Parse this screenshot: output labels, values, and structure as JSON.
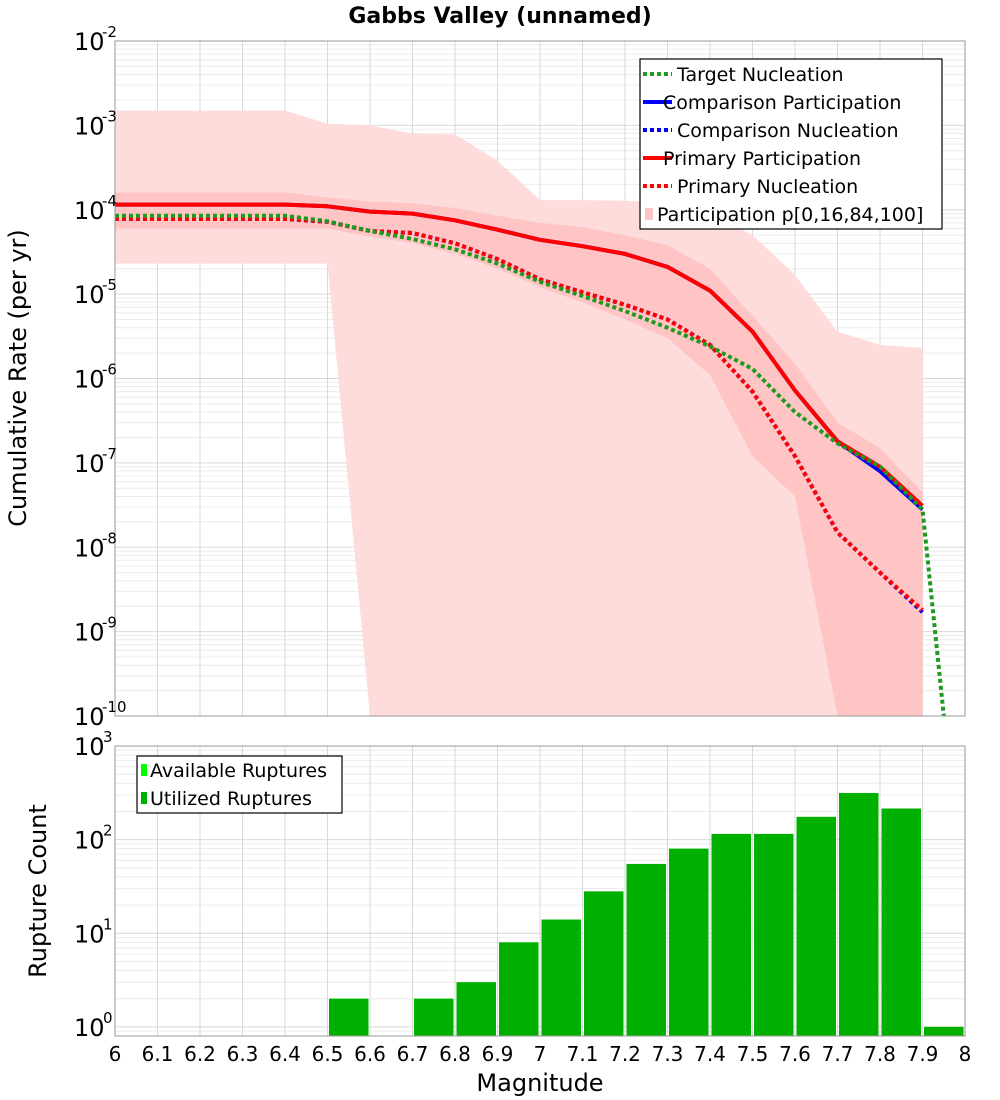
{
  "chart_data": [
    {
      "type": "line",
      "title": "Gabbs Valley (unnamed)",
      "ylabel": "Cumulative Rate (per yr)",
      "xlabel": "",
      "yscale": "log",
      "ylim": [
        1e-10,
        0.01
      ],
      "xlim": [
        6,
        8
      ],
      "y_tick_labels": [
        {
          "base": "10",
          "exp": "-2"
        },
        {
          "base": "10",
          "exp": "-3"
        },
        {
          "base": "10",
          "exp": "-4"
        },
        {
          "base": "10",
          "exp": "-5"
        },
        {
          "base": "10",
          "exp": "-6"
        },
        {
          "base": "10",
          "exp": "-7"
        },
        {
          "base": "10",
          "exp": "-8"
        },
        {
          "base": "10",
          "exp": "-9"
        },
        {
          "base": "10",
          "exp": "-10"
        }
      ],
      "bands": [
        {
          "name": "p0-p100",
          "color": "#ffdcdc",
          "x": [
            6.0,
            6.4,
            6.5,
            6.6,
            6.7,
            6.8,
            6.9,
            7.0,
            7.1,
            7.2,
            7.3,
            7.4,
            7.5,
            7.6,
            7.7,
            7.8,
            7.9
          ],
          "upper": [
            0.0015,
            0.0015,
            0.00105,
            0.001,
            0.0008,
            0.00078,
            0.00038,
            0.00013,
            0.00013,
            0.000128,
            0.00012,
            9e-05,
            5e-05,
            1.7e-05,
            3.6e-06,
            2.5e-06,
            2.3e-06
          ],
          "lower": [
            2.3e-05,
            2.3e-05,
            2.3e-05,
            1e-10,
            1e-10,
            1e-10,
            1e-10,
            1e-10,
            1e-10,
            1e-10,
            1e-10,
            1e-10,
            1e-10,
            1e-10,
            1e-10,
            1e-10,
            1e-10
          ]
        },
        {
          "name": "p16-p84",
          "color": "#ffc4c4",
          "x": [
            6.0,
            6.4,
            6.5,
            6.6,
            6.7,
            6.8,
            6.9,
            7.0,
            7.1,
            7.2,
            7.3,
            7.4,
            7.5,
            7.6,
            7.7,
            7.8,
            7.9
          ],
          "upper": [
            0.00016,
            0.00016,
            0.00014,
            0.000125,
            0.00012,
            0.000105,
            8.5e-05,
            7e-05,
            6.2e-05,
            5e-05,
            3.8e-05,
            2e-05,
            5.5e-06,
            1.5e-06,
            3e-07,
            1.5e-07,
            4.5e-08
          ],
          "lower": [
            6e-05,
            6e-05,
            6e-05,
            4.8e-05,
            4e-05,
            3e-05,
            2e-05,
            1.2e-05,
            8e-06,
            5e-06,
            3e-06,
            1.1e-06,
            1.2e-07,
            4e-08,
            1e-10,
            1e-10,
            1e-10
          ]
        }
      ],
      "series": [
        {
          "name": "Target Nucleation",
          "color": "#1f9a1f",
          "dash": "dotted",
          "x": [
            6.0,
            6.4,
            6.5,
            6.6,
            6.7,
            6.8,
            6.9,
            7.0,
            7.1,
            7.2,
            7.3,
            7.4,
            7.5,
            7.6,
            7.7,
            7.8,
            7.9,
            7.95
          ],
          "values": [
            8.5e-05,
            8.5e-05,
            7.3e-05,
            5.6e-05,
            4.5e-05,
            3.4e-05,
            2.3e-05,
            1.4e-05,
            9.5e-06,
            6.3e-06,
            4e-06,
            2.4e-06,
            1.3e-06,
            4e-07,
            1.7e-07,
            9e-08,
            2.8e-08,
            1e-10
          ]
        },
        {
          "name": "Comparison Participation",
          "color": "#0000ff",
          "dash": "solid",
          "x": [
            6.0,
            6.4,
            6.5,
            6.6,
            6.7,
            6.8,
            6.9,
            7.0,
            7.1,
            7.2,
            7.3,
            7.4,
            7.5,
            7.6,
            7.7,
            7.8,
            7.9
          ],
          "values": [
            0.000115,
            0.000115,
            0.00011,
            9.5e-05,
            9e-05,
            7.5e-05,
            5.8e-05,
            4.4e-05,
            3.7e-05,
            3e-05,
            2.1e-05,
            1.1e-05,
            3.6e-06,
            7.2e-07,
            1.8e-07,
            8e-08,
            2.8e-08
          ]
        },
        {
          "name": "Comparison Nucleation",
          "color": "#0000ff",
          "dash": "dotted",
          "x": [
            6.0,
            6.4,
            6.5,
            6.6,
            6.7,
            6.8,
            6.9,
            7.0,
            7.1,
            7.2,
            7.3,
            7.4,
            7.5,
            7.6,
            7.7,
            7.8,
            7.9
          ],
          "values": [
            7.8e-05,
            7.8e-05,
            7.2e-05,
            5.6e-05,
            5.3e-05,
            4e-05,
            2.6e-05,
            1.5e-05,
            1.05e-05,
            7.5e-06,
            5e-06,
            2.5e-06,
            7e-07,
            1.2e-07,
            1.5e-08,
            5e-09,
            1.7e-09
          ]
        },
        {
          "name": "Primary Participation",
          "color": "#ff0000",
          "dash": "solid",
          "x": [
            6.0,
            6.4,
            6.5,
            6.6,
            6.7,
            6.8,
            6.9,
            7.0,
            7.1,
            7.2,
            7.3,
            7.4,
            7.5,
            7.6,
            7.7,
            7.8,
            7.9
          ],
          "values": [
            0.000115,
            0.000115,
            0.00011,
            9.5e-05,
            9e-05,
            7.5e-05,
            5.8e-05,
            4.4e-05,
            3.7e-05,
            3e-05,
            2.1e-05,
            1.1e-05,
            3.6e-06,
            7.2e-07,
            1.8e-07,
            9e-08,
            3.1e-08
          ]
        },
        {
          "name": "Primary Nucleation",
          "color": "#ff0000",
          "dash": "dotted",
          "x": [
            6.0,
            6.4,
            6.5,
            6.6,
            6.7,
            6.8,
            6.9,
            7.0,
            7.1,
            7.2,
            7.3,
            7.4,
            7.5,
            7.6,
            7.7,
            7.8,
            7.9
          ],
          "values": [
            7.8e-05,
            7.8e-05,
            7.2e-05,
            5.6e-05,
            5.3e-05,
            4e-05,
            2.6e-05,
            1.5e-05,
            1.05e-05,
            7.5e-06,
            5e-06,
            2.5e-06,
            7e-07,
            1.2e-07,
            1.5e-08,
            5e-09,
            1.8e-09
          ]
        }
      ],
      "legend": [
        {
          "label": "Target Nucleation",
          "color": "#1f9a1f",
          "style": "dotted"
        },
        {
          "label": "Comparison Participation",
          "color": "#0000ff",
          "style": "solid"
        },
        {
          "label": "Comparison Nucleation",
          "color": "#0000ff",
          "style": "dotted"
        },
        {
          "label": "Primary Participation",
          "color": "#ff0000",
          "style": "solid"
        },
        {
          "label": "Primary Nucleation",
          "color": "#ff0000",
          "style": "dotted"
        },
        {
          "label": "Participation p[0,16,84,100]",
          "color": "#ffc4c4",
          "style": "box"
        }
      ],
      "legend_position": "top-right"
    },
    {
      "type": "bar",
      "title": "",
      "ylabel": "Rupture Count",
      "xlabel": "Magnitude",
      "yscale": "log",
      "ylim": [
        0.8,
        1000
      ],
      "xlim": [
        6,
        8
      ],
      "y_tick_labels": [
        {
          "base": "10",
          "exp": "3"
        },
        {
          "base": "10",
          "exp": "2"
        },
        {
          "base": "10",
          "exp": "1"
        },
        {
          "base": "10",
          "exp": "0"
        }
      ],
      "x_tick_labels": [
        "6",
        "6.1",
        "6.2",
        "6.3",
        "6.4",
        "6.5",
        "6.6",
        "6.7",
        "6.8",
        "6.9",
        "7",
        "7.1",
        "7.2",
        "7.3",
        "7.4",
        "7.5",
        "7.6",
        "7.7",
        "7.8",
        "7.9",
        "8"
      ],
      "bin_width": 0.1,
      "series": [
        {
          "name": "Available Ruptures",
          "color": "#00ff00",
          "bins": [
            6.5,
            6.7,
            6.8,
            6.9,
            7.0,
            7.1,
            7.2,
            7.3,
            7.4,
            7.5,
            7.6,
            7.7,
            7.8,
            7.9
          ],
          "values": [
            2,
            2,
            3,
            8,
            14,
            28,
            55,
            80,
            115,
            115,
            175,
            315,
            215,
            1
          ]
        },
        {
          "name": "Utilized Ruptures",
          "color": "#00b000",
          "bins": [
            6.5,
            6.7,
            6.8,
            6.9,
            7.0,
            7.1,
            7.2,
            7.3,
            7.4,
            7.5,
            7.6,
            7.7,
            7.8,
            7.9
          ],
          "values": [
            2,
            2,
            3,
            8,
            14,
            28,
            55,
            80,
            115,
            115,
            175,
            315,
            215,
            1
          ]
        }
      ],
      "legend": [
        {
          "label": "Available Ruptures",
          "color": "#00ff00"
        },
        {
          "label": "Utilized Ruptures",
          "color": "#00b000"
        }
      ],
      "legend_position": "top-left"
    }
  ]
}
